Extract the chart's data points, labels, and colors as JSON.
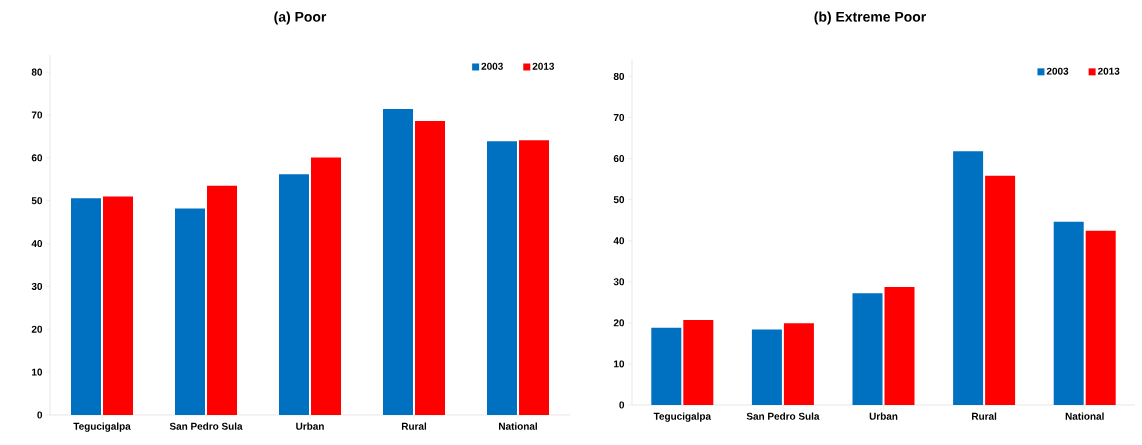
{
  "chart_data": [
    {
      "type": "bar",
      "title": "(a) Poor",
      "categories": [
        "Tegucigalpa",
        "San Pedro Sula",
        "Urban",
        "Rural",
        "National"
      ],
      "series": [
        {
          "name": "2003",
          "color": "#0070c0",
          "values": [
            50.6,
            48.2,
            56.2,
            71.4,
            63.9
          ]
        },
        {
          "name": "2013",
          "color": "#ff0000",
          "values": [
            51.0,
            53.5,
            60.1,
            68.6,
            64.1
          ]
        }
      ],
      "ylim": [
        0,
        84
      ],
      "yticks": [
        0,
        10,
        20,
        30,
        40,
        50,
        60,
        70,
        80
      ],
      "legend": "top right",
      "grid": false
    },
    {
      "type": "bar",
      "title": "(b) Extreme Poor",
      "categories": [
        "Tegucigalpa",
        "San Pedro Sula",
        "Urban",
        "Rural",
        "National"
      ],
      "series": [
        {
          "name": "2003",
          "color": "#0070c0",
          "values": [
            18.8,
            18.4,
            27.2,
            61.8,
            44.6
          ]
        },
        {
          "name": "2013",
          "color": "#ff0000",
          "values": [
            20.7,
            19.9,
            28.7,
            55.8,
            42.4
          ]
        }
      ],
      "ylim": [
        0,
        84
      ],
      "yticks": [
        0,
        10,
        20,
        30,
        40,
        50,
        60,
        70,
        80
      ],
      "legend": "top right",
      "grid": false
    }
  ]
}
